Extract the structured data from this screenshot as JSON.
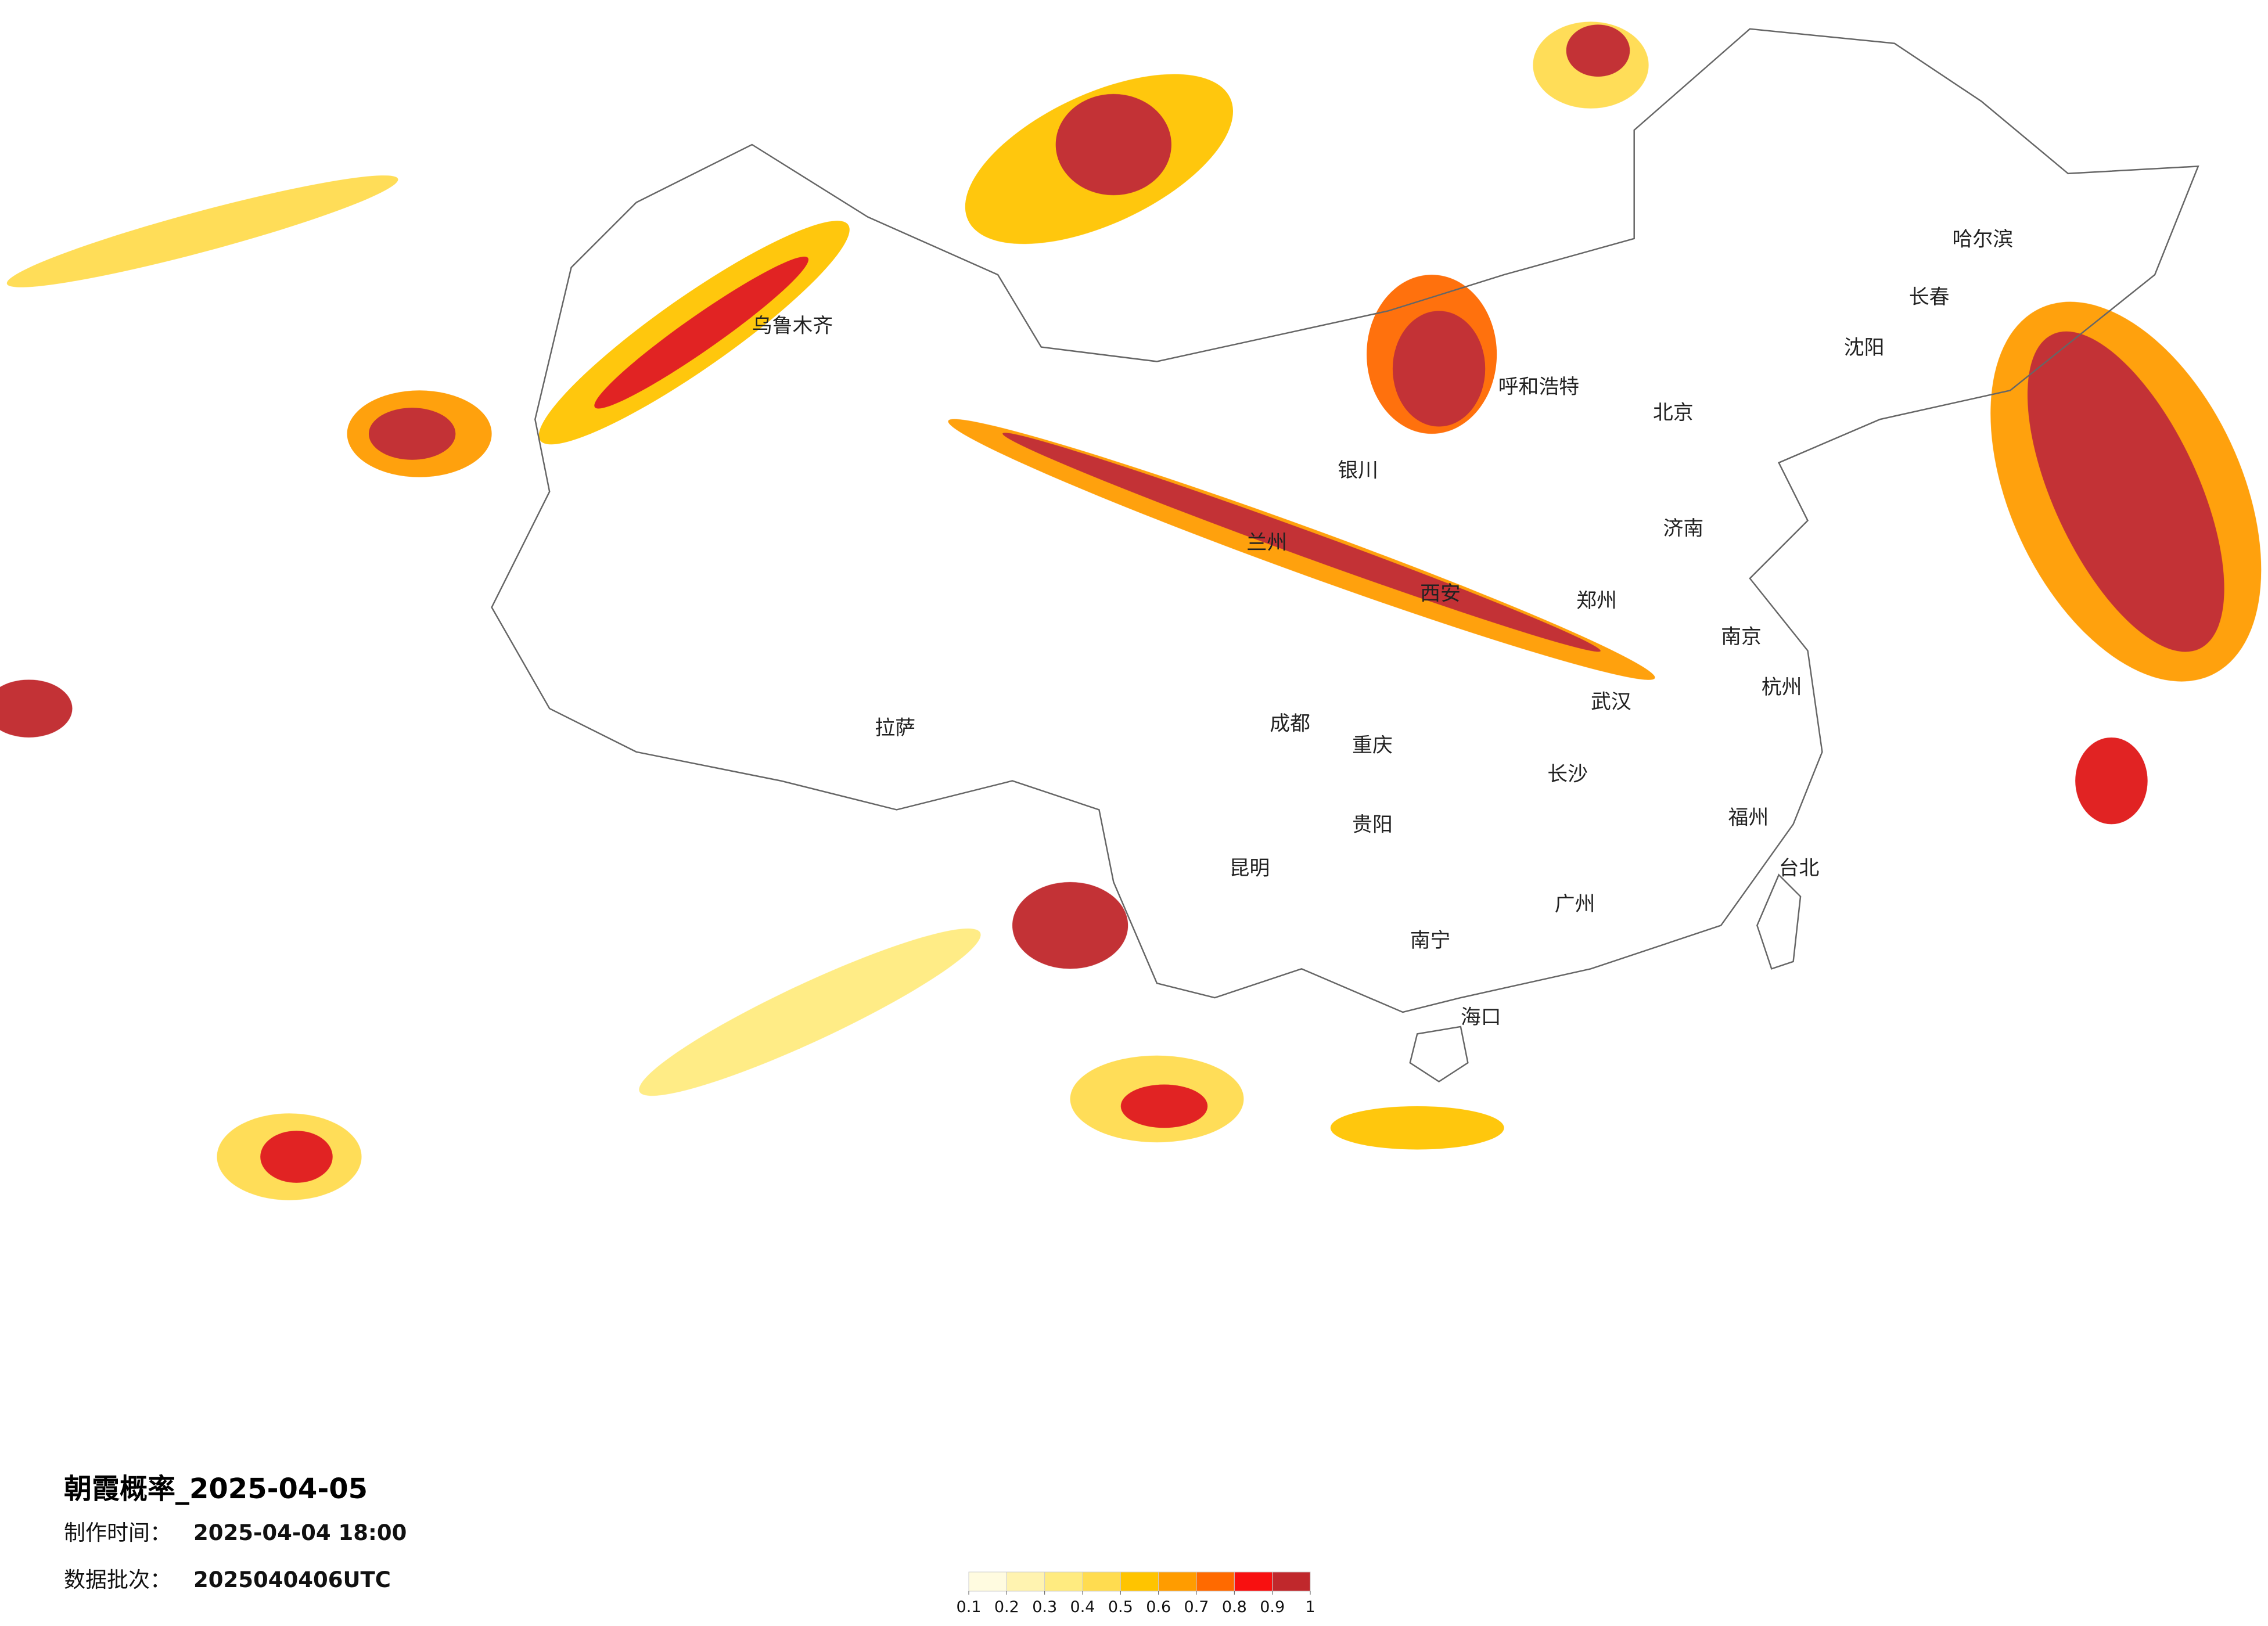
{
  "title": "朝霞概率_2025-04-05",
  "made_label": "制作时间：",
  "made_time": "2025-04-04 18:00",
  "batch_label": "数据批次：",
  "batch": "2025040406UTC",
  "colorbar": {
    "ticks": [
      0.1,
      0.2,
      0.3,
      0.4,
      0.5,
      0.6,
      0.7,
      0.8,
      0.9,
      1
    ],
    "colors": [
      "#fffbe0",
      "#fff3b0",
      "#ffeb80",
      "#ffdc50",
      "#ffc400",
      "#ff9c00",
      "#ff6a00",
      "#f81010",
      "#c0282c"
    ]
  },
  "cities": [
    "北京",
    "呼和浩特",
    "哈尔滨",
    "长春",
    "沈阳",
    "西安",
    "兰州",
    "银川",
    "成都",
    "重庆",
    "武汉",
    "长沙",
    "南京",
    "杭州",
    "福州",
    "广州",
    "南宁",
    "昆明",
    "贵阳",
    "拉萨",
    "乌鲁木齐",
    "台北",
    "海口",
    "郑州",
    "济南"
  ]
}
